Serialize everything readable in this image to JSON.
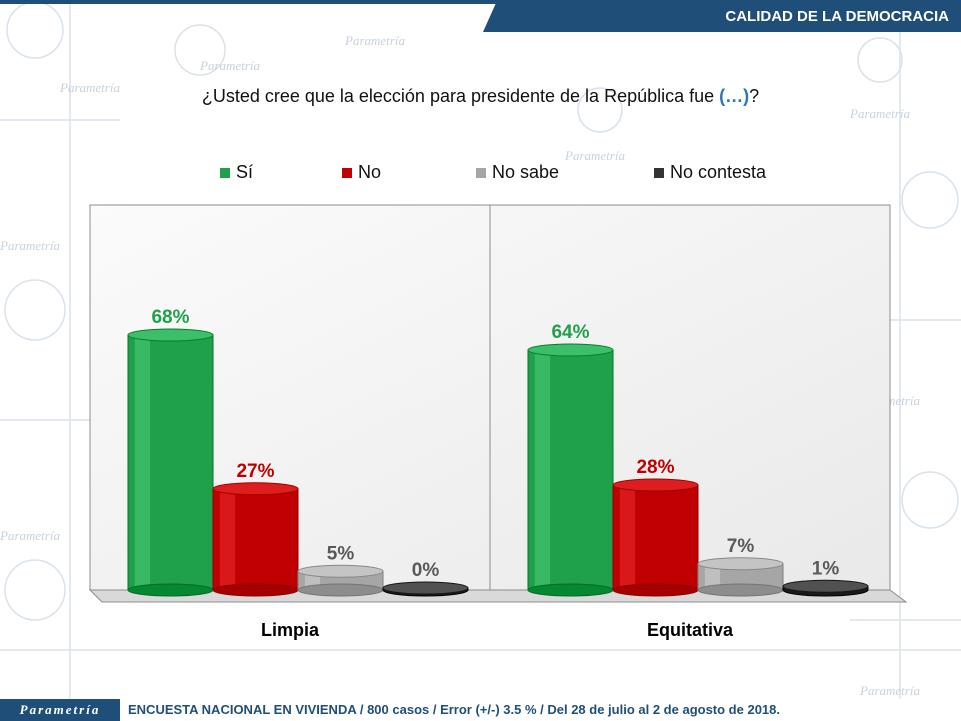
{
  "header": {
    "section_title": "CALIDAD DE LA DEMOCRACIA"
  },
  "question": {
    "text_before": "¿Usted cree que la elección para presidente de la República fue ",
    "highlight": "(…)",
    "text_after": "?"
  },
  "colors": {
    "brand": "#1f4e79",
    "si": "#1fa04a",
    "no": "#c00000",
    "no_sabe": "#a6a6a6",
    "no_contesta": "#333333"
  },
  "background_word": "Parametría",
  "footer": {
    "logo": "Parametría",
    "text": "ENCUESTA NACIONAL EN VIVIENDA / 800 casos / Error (+/-) 3.5 % / Del 28 de julio al 2 de agosto de 2018."
  },
  "chart_data": {
    "type": "bar",
    "categories": [
      "Limpia",
      "Equitativa"
    ],
    "series": [
      {
        "name": "Sí",
        "values": [
          68,
          64
        ],
        "labels": [
          "68%",
          "64%"
        ],
        "color": "#1fa04a"
      },
      {
        "name": "No",
        "values": [
          27,
          28
        ],
        "labels": [
          "27%",
          "28%"
        ],
        "color": "#c00000"
      },
      {
        "name": "No sabe",
        "values": [
          5,
          7
        ],
        "labels": [
          "5%",
          "7%"
        ],
        "color": "#a6a6a6"
      },
      {
        "name": "No contesta",
        "values": [
          0,
          1
        ],
        "labels": [
          "0%",
          "1%"
        ],
        "color": "#333333"
      }
    ],
    "ylim": [
      0,
      100
    ],
    "grid": false,
    "legend_position": "top"
  }
}
